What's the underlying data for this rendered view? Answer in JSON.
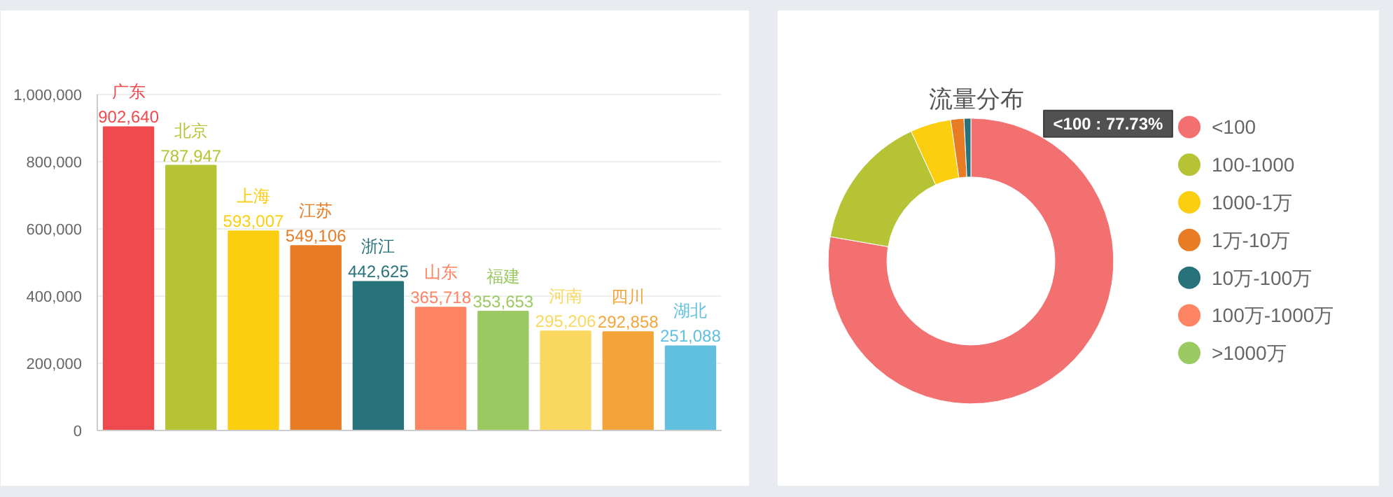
{
  "chart_data": [
    {
      "type": "bar",
      "categories": [
        "广东",
        "北京",
        "上海",
        "江苏",
        "浙江",
        "山东",
        "福建",
        "河南",
        "四川",
        "湖北"
      ],
      "values": [
        902640,
        787947,
        593007,
        549106,
        442625,
        365718,
        353653,
        295206,
        292858,
        251088
      ],
      "colors": [
        "#f0494e",
        "#b5c334",
        "#fcce10",
        "#e87c25",
        "#27727b",
        "#fe8463",
        "#9bca63",
        "#fad860",
        "#f3a43b",
        "#60c0dd"
      ],
      "ylim": [
        0,
        1000000
      ],
      "yticks": [
        {
          "value": 0,
          "label": "0"
        },
        {
          "value": 200000,
          "label": "200,000"
        },
        {
          "value": 400000,
          "label": "400,000"
        },
        {
          "value": 600000,
          "label": "600,000"
        },
        {
          "value": 800000,
          "label": "800,000"
        },
        {
          "value": 1000000,
          "label": "1,000,000"
        }
      ],
      "value_labels": [
        "902,640",
        "787,947",
        "593,007",
        "549,106",
        "442,625",
        "365,718",
        "353,653",
        "295,206",
        "292,858",
        "251,088"
      ],
      "grid": "y",
      "tick_labels": "y"
    },
    {
      "type": "donut",
      "title": "流量分布",
      "categories": [
        "<100",
        "100-1000",
        "1000-1万",
        "1万-10万",
        "10万-100万",
        "100万-1000万",
        ">1000万"
      ],
      "values": [
        77.73,
        15.4,
        4.6,
        1.5,
        0.77,
        0,
        0
      ],
      "colors": [
        "#f37070",
        "#b5c334",
        "#fcce10",
        "#e87c25",
        "#27727b",
        "#fe8463",
        "#9bca63"
      ],
      "legend": "right",
      "annotations": [
        "<100 : 77.73%"
      ]
    }
  ]
}
